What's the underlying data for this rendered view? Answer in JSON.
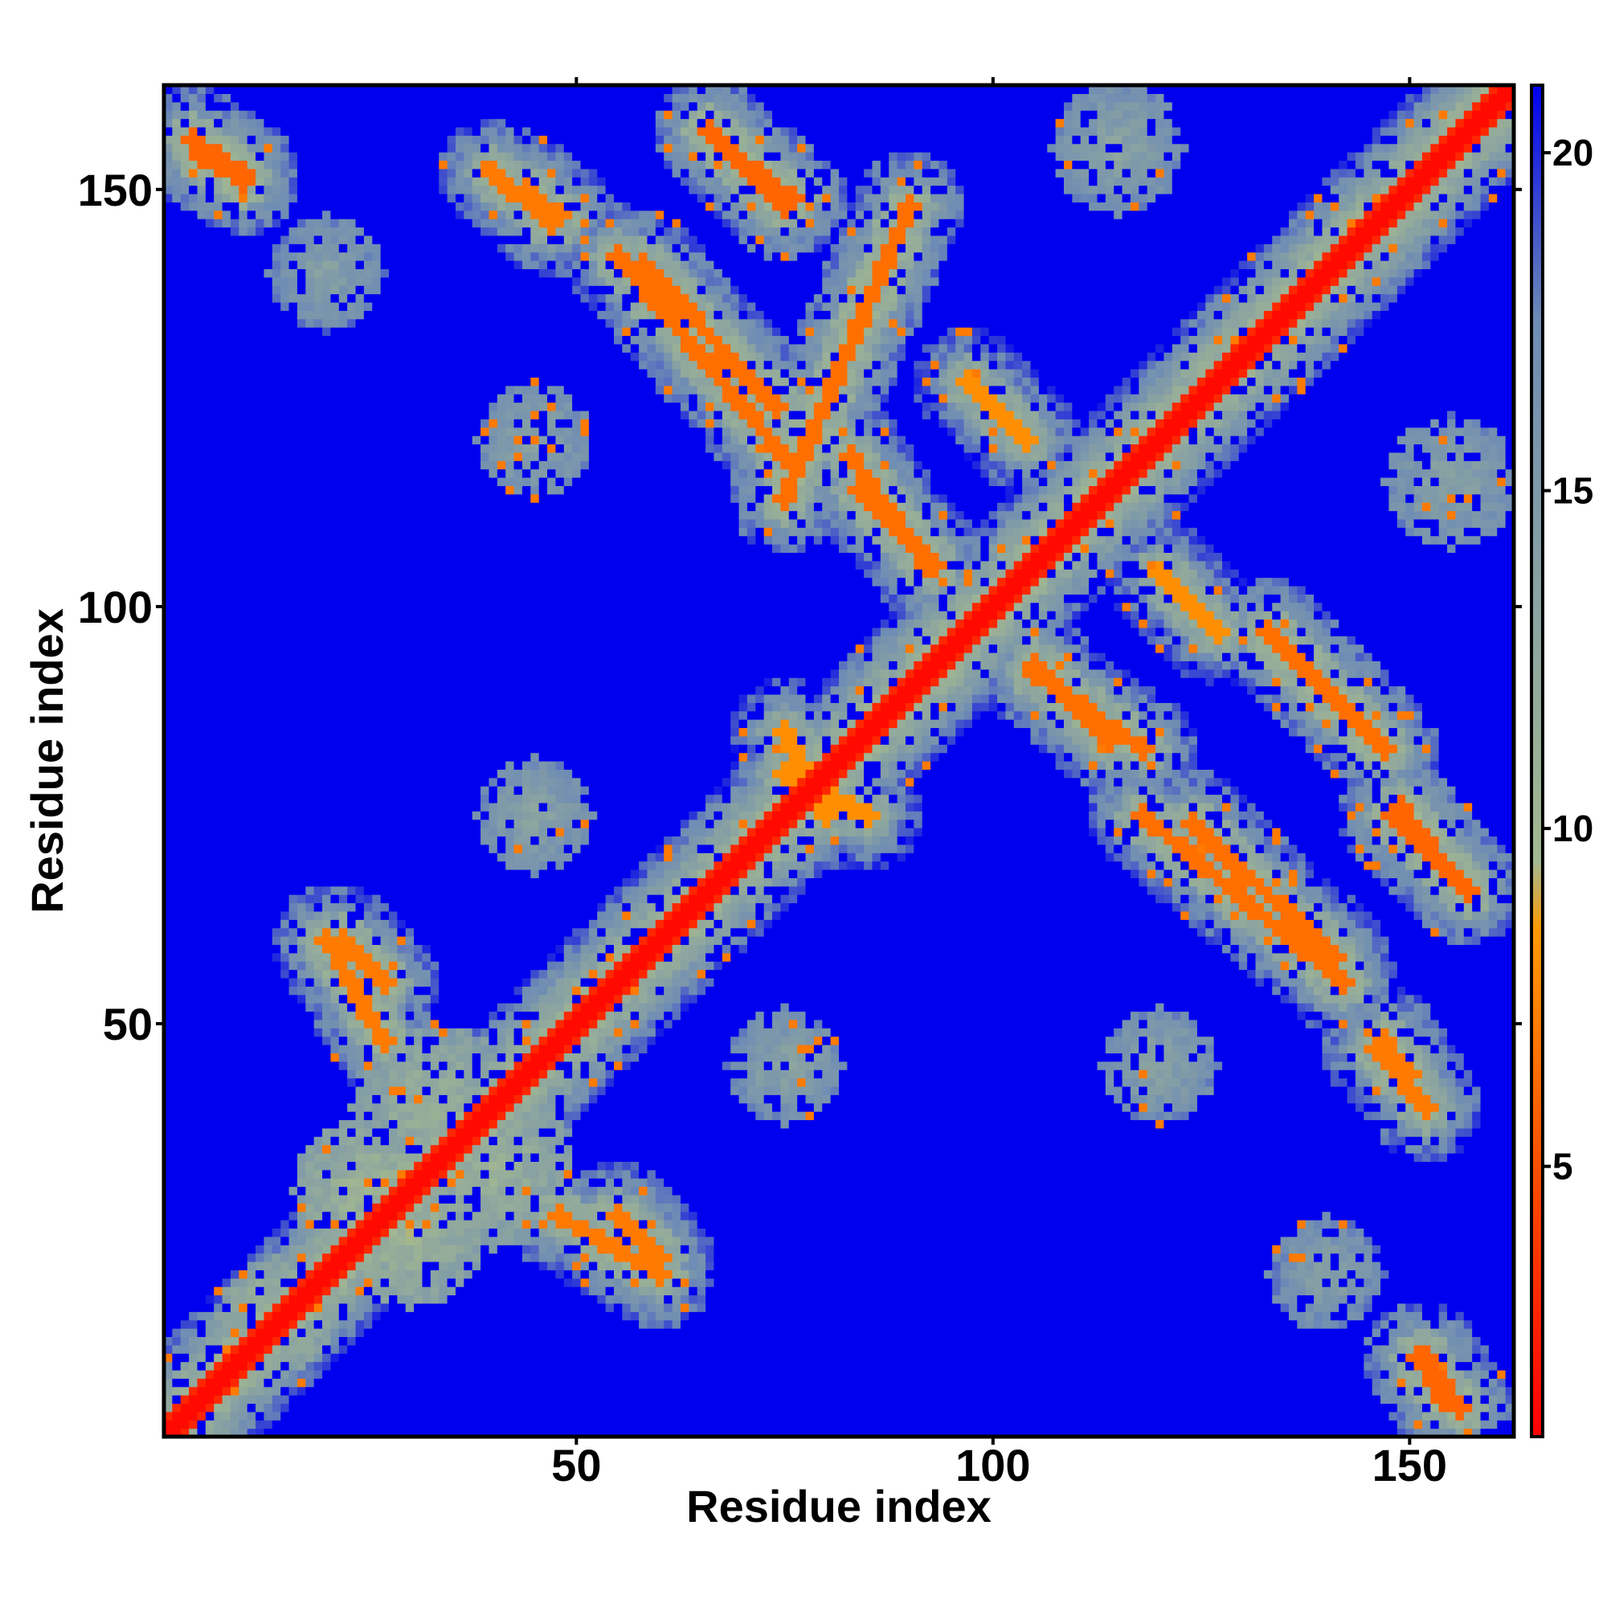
{
  "chart_data": {
    "type": "heatmap",
    "title": "",
    "xlabel": "Residue index",
    "ylabel": "Residue index",
    "xlim": [
      1,
      162
    ],
    "ylim": [
      1,
      162
    ],
    "x_ticks": [
      50,
      100,
      150
    ],
    "y_ticks": [
      50,
      100,
      150
    ],
    "n_residues": 162,
    "grid": false,
    "legend": "colorbar-right",
    "colorbar": {
      "ticks": [
        5,
        10,
        15,
        20
      ],
      "range": [
        1,
        21
      ],
      "stops": [
        {
          "value": 1,
          "color": "#ff0000"
        },
        {
          "value": 4.5,
          "color": "#ff4500"
        },
        {
          "value": 8.5,
          "color": "#ff9900"
        },
        {
          "value": 9.5,
          "color": "#a3b890"
        },
        {
          "value": 17.5,
          "color": "#6f8cb4"
        },
        {
          "value": 21,
          "color": "#0000ee"
        }
      ]
    },
    "background_value": 21,
    "main_diagonal": {
      "value": 1.5,
      "halo_width_residues": 7
    },
    "contact_bands": [
      {
        "name": "helix-antidiagonal",
        "from": [
          90,
          148
        ],
        "to": [
          75,
          113
        ],
        "core_value": 6.5,
        "halo": 10.5
      },
      {
        "name": "helix-antidiagonal",
        "from": [
          133,
          97
        ],
        "to": [
          147,
          83
        ],
        "core_value": 6.5,
        "halo": 10.5
      },
      {
        "name": "strand",
        "from": [
          68,
          155
        ],
        "to": [
          76,
          149
        ],
        "core_value": 6.0,
        "halo": 10.5
      },
      {
        "name": "strand",
        "from": [
          155,
          68
        ],
        "to": [
          149,
          76
        ],
        "core_value": 6.0,
        "halo": 10.5
      },
      {
        "name": "strand",
        "from": [
          58,
          141
        ],
        "to": [
          74,
          124
        ],
        "core_value": 6.5,
        "halo": 11.0
      },
      {
        "name": "strand",
        "from": [
          141,
          58
        ],
        "to": [
          124,
          74
        ],
        "core_value": 6.5,
        "halo": 11.0
      },
      {
        "name": "strand",
        "from": [
          84,
          114
        ],
        "to": [
          93,
          105
        ],
        "core_value": 6.5,
        "halo": 11.0
      },
      {
        "name": "strand",
        "from": [
          114,
          84
        ],
        "to": [
          105,
          93
        ],
        "core_value": 6.5,
        "halo": 11.0
      },
      {
        "name": "strand",
        "from": [
          105,
          92
        ],
        "to": [
          118,
          83
        ],
        "core_value": 6.5,
        "halo": 11.0
      },
      {
        "name": "strand",
        "from": [
          92,
          105
        ],
        "to": [
          83,
          118
        ],
        "core_value": 6.5,
        "halo": 11.0
      },
      {
        "name": "strand",
        "from": [
          118,
          75
        ],
        "to": [
          142,
          55
        ],
        "core_value": 6.5,
        "halo": 11.0
      },
      {
        "name": "strand",
        "from": [
          75,
          118
        ],
        "to": [
          55,
          142
        ],
        "core_value": 6.5,
        "halo": 11.0
      },
      {
        "name": "strand",
        "from": [
          148,
          75
        ],
        "to": [
          157,
          66
        ],
        "core_value": 6.0,
        "halo": 10.5
      },
      {
        "name": "strand",
        "from": [
          75,
          148
        ],
        "to": [
          66,
          157
        ],
        "core_value": 6.0,
        "halo": 10.5
      },
      {
        "name": "strand",
        "from": [
          146,
          47
        ],
        "to": [
          152,
          40
        ],
        "core_value": 7.0,
        "halo": 11.0
      },
      {
        "name": "strand",
        "from": [
          47,
          146
        ],
        "to": [
          40,
          152
        ],
        "core_value": 7.0,
        "halo": 11.0
      },
      {
        "name": "strand",
        "from": [
          152,
          10
        ],
        "to": [
          156,
          4
        ],
        "core_value": 6.0,
        "halo": 10.5
      },
      {
        "name": "strand",
        "from": [
          10,
          152
        ],
        "to": [
          4,
          156
        ],
        "core_value": 6.0,
        "halo": 10.5
      },
      {
        "name": "strand",
        "from": [
          5,
          154
        ],
        "to": [
          10,
          151
        ],
        "core_value": 6.0,
        "halo": 10.5
      },
      {
        "name": "strand",
        "from": [
          154,
          5
        ],
        "to": [
          151,
          10
        ],
        "core_value": 6.0,
        "halo": 10.5
      },
      {
        "name": "strand",
        "from": [
          44,
          150
        ],
        "to": [
          48,
          147
        ],
        "core_value": 7.0,
        "halo": 11.0
      },
      {
        "name": "strand",
        "from": [
          150,
          44
        ],
        "to": [
          147,
          48
        ],
        "core_value": 7.0,
        "halo": 11.0
      },
      {
        "name": "strand",
        "from": [
          22,
          60
        ],
        "to": [
          27,
          55
        ],
        "core_value": 7.0,
        "halo": 11.0
      },
      {
        "name": "strand",
        "from": [
          60,
          22
        ],
        "to": [
          55,
          27
        ],
        "core_value": 7.0,
        "halo": 11.0
      },
      {
        "name": "strand",
        "from": [
          48,
          27
        ],
        "to": [
          60,
          20
        ],
        "core_value": 7.0,
        "halo": 11.0
      },
      {
        "name": "strand",
        "from": [
          27,
          48
        ],
        "to": [
          20,
          60
        ],
        "core_value": 7.0,
        "halo": 11.0
      },
      {
        "name": "strand",
        "from": [
          97,
          127
        ],
        "to": [
          104,
          120
        ],
        "core_value": 8.0,
        "halo": 11.5
      },
      {
        "name": "strand",
        "from": [
          127,
          97
        ],
        "to": [
          120,
          104
        ],
        "core_value": 8.0,
        "halo": 11.5
      },
      {
        "name": "strand",
        "from": [
          75,
          80
        ],
        "to": [
          85,
          75
        ],
        "core_value": 8.0,
        "halo": 11.5
      },
      {
        "name": "strand",
        "from": [
          80,
          75
        ],
        "to": [
          75,
          85
        ],
        "core_value": 8.0,
        "halo": 11.5
      }
    ],
    "contact_regions": [
      {
        "center": [
          33,
          40
        ],
        "radius": 10,
        "value": 10.5
      },
      {
        "center": [
          40,
          33
        ],
        "radius": 10,
        "value": 10.5
      },
      {
        "center": [
          30,
          25
        ],
        "radius": 9,
        "value": 10.0
      },
      {
        "center": [
          25,
          30
        ],
        "radius": 9,
        "value": 10.0
      },
      {
        "center": [
          14,
          15
        ],
        "radius": 7,
        "value": 10.0
      },
      {
        "center": [
          75,
          45
        ],
        "radius": 7,
        "value": 13.0
      },
      {
        "center": [
          45,
          75
        ],
        "radius": 7,
        "value": 13.0
      },
      {
        "center": [
          120,
          45
        ],
        "radius": 7,
        "value": 13.0
      },
      {
        "center": [
          45,
          120
        ],
        "radius": 7,
        "value": 13.0
      },
      {
        "center": [
          155,
          115
        ],
        "radius": 8,
        "value": 13.0
      },
      {
        "center": [
          115,
          155
        ],
        "radius": 8,
        "value": 13.0
      },
      {
        "center": [
          20,
          140
        ],
        "radius": 7,
        "value": 13.5
      },
      {
        "center": [
          140,
          20
        ],
        "radius": 7,
        "value": 13.5
      },
      {
        "center": [
          60,
          60
        ],
        "radius": 5,
        "value": 12.0
      }
    ]
  }
}
